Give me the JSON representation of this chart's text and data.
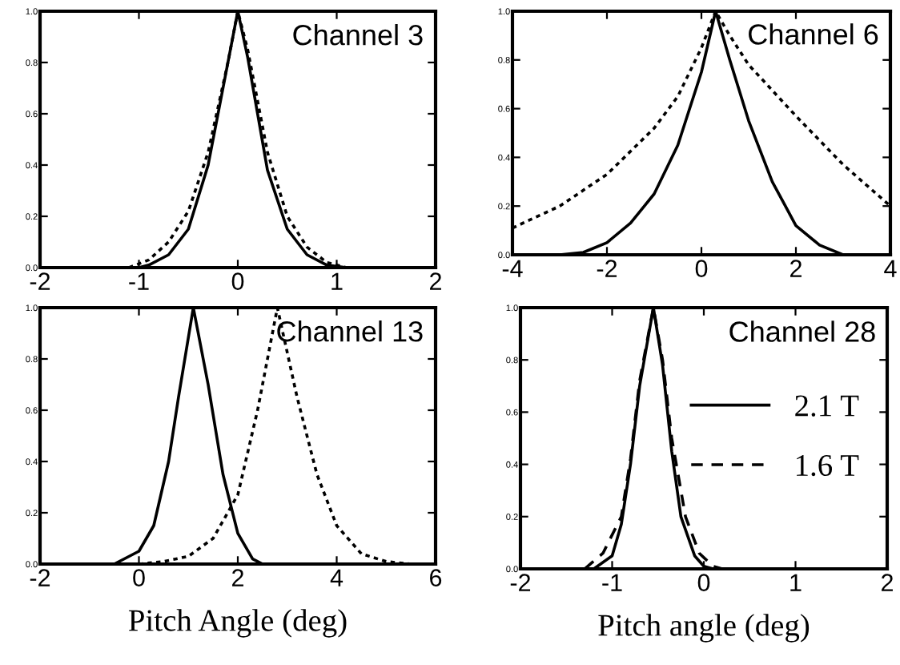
{
  "chart_data": [
    {
      "type": "line",
      "annotations": [
        "Channel 3"
      ],
      "xlim": [
        -2,
        2
      ],
      "xticks": [
        -2,
        -1,
        0,
        1,
        2
      ],
      "ylim": [
        0,
        1
      ],
      "yticks": [
        {
          "value": 0,
          "label": "0.0"
        },
        {
          "value": 0.2,
          "label": "0.2"
        },
        {
          "value": 0.4,
          "label": "0.4"
        },
        {
          "value": 0.6,
          "label": "0.6"
        },
        {
          "value": 0.8,
          "label": "0.8"
        },
        {
          "value": 1,
          "label": "1.0"
        }
      ],
      "grid": false,
      "legend": false,
      "series": [
        {
          "color": "#000000",
          "line_style": "solid",
          "x": [
            -1.0,
            -0.9,
            -0.7,
            -0.5,
            -0.3,
            -0.2,
            -0.1,
            0,
            0.1,
            0.2,
            0.3,
            0.5,
            0.7,
            0.9,
            1.1
          ],
          "values": [
            0,
            0.01,
            0.05,
            0.15,
            0.4,
            0.6,
            0.8,
            1,
            0.82,
            0.6,
            0.38,
            0.15,
            0.05,
            0.01,
            0
          ]
        },
        {
          "color": "#000000",
          "line_style": "dotted",
          "x": [
            -1.1,
            -0.9,
            -0.7,
            -0.5,
            -0.3,
            -0.1,
            0,
            0.1,
            0.3,
            0.5,
            0.7,
            0.9,
            1.1
          ],
          "values": [
            0,
            0.03,
            0.1,
            0.22,
            0.45,
            0.8,
            1,
            0.85,
            0.45,
            0.2,
            0.08,
            0.02,
            0
          ]
        }
      ]
    },
    {
      "type": "line",
      "annotations": [
        "Channel 6"
      ],
      "xlim": [
        -4,
        4
      ],
      "xticks": [
        -4,
        -2,
        0,
        2,
        4
      ],
      "ylim": [
        0,
        1
      ],
      "yticks": [
        {
          "value": 0,
          "label": "0.0"
        },
        {
          "value": 0.2,
          "label": "0.2"
        },
        {
          "value": 0.4,
          "label": "0.4"
        },
        {
          "value": 0.6,
          "label": "0.6"
        },
        {
          "value": 0.8,
          "label": "0.8"
        },
        {
          "value": 1,
          "label": "1.0"
        }
      ],
      "grid": false,
      "legend": false,
      "series": [
        {
          "color": "#000000",
          "line_style": "solid",
          "x": [
            -3,
            -2.5,
            -2,
            -1.5,
            -1,
            -0.5,
            0,
            0.3,
            0.6,
            1,
            1.5,
            2,
            2.5,
            3
          ],
          "values": [
            0,
            0.01,
            0.05,
            0.13,
            0.25,
            0.45,
            0.75,
            1,
            0.8,
            0.55,
            0.3,
            0.12,
            0.04,
            0
          ]
        },
        {
          "color": "#000000",
          "line_style": "dotted",
          "x": [
            -4,
            -3,
            -2,
            -1,
            -0.5,
            0,
            0.3,
            0.6,
            1,
            2,
            3,
            4
          ],
          "values": [
            0.11,
            0.2,
            0.33,
            0.52,
            0.65,
            0.85,
            1,
            0.9,
            0.78,
            0.57,
            0.37,
            0.2
          ]
        }
      ]
    },
    {
      "type": "line",
      "annotations": [
        "Channel 13"
      ],
      "xlabel": "Pitch Angle (deg)",
      "xlim": [
        -2,
        6
      ],
      "xticks": [
        -2,
        0,
        2,
        4,
        6
      ],
      "ylim": [
        0,
        1
      ],
      "yticks": [
        {
          "value": 0,
          "label": "0.0"
        },
        {
          "value": 0.2,
          "label": "0.2"
        },
        {
          "value": 0.4,
          "label": "0.4"
        },
        {
          "value": 0.6,
          "label": "0.6"
        },
        {
          "value": 0.8,
          "label": "0.8"
        },
        {
          "value": 1,
          "label": "1.0"
        }
      ],
      "grid": false,
      "legend": false,
      "series": [
        {
          "color": "#000000",
          "line_style": "solid",
          "x": [
            -0.5,
            0,
            0.3,
            0.6,
            0.8,
            1.1,
            1.4,
            1.7,
            2,
            2.3,
            2.5
          ],
          "values": [
            0,
            0.05,
            0.15,
            0.4,
            0.65,
            1,
            0.7,
            0.35,
            0.12,
            0.02,
            0
          ]
        },
        {
          "color": "#000000",
          "line_style": "dotted",
          "x": [
            0,
            0.5,
            1,
            1.5,
            2,
            2.4,
            2.8,
            3.2,
            3.6,
            4,
            4.5,
            5,
            5.5
          ],
          "values": [
            0,
            0.01,
            0.03,
            0.1,
            0.27,
            0.6,
            1,
            0.65,
            0.35,
            0.15,
            0.04,
            0.01,
            0
          ]
        }
      ]
    },
    {
      "type": "line",
      "annotations": [
        "Channel 28"
      ],
      "xlabel": "Pitch angle (deg)",
      "xlim": [
        -2,
        2
      ],
      "xticks": [
        -2,
        -1,
        0,
        1,
        2
      ],
      "ylim": [
        0,
        1
      ],
      "yticks": [
        {
          "value": 0,
          "label": "0.0"
        },
        {
          "value": 0.2,
          "label": "0.2"
        },
        {
          "value": 0.4,
          "label": "0.4"
        },
        {
          "value": 0.6,
          "label": "0.6"
        },
        {
          "value": 0.8,
          "label": "0.8"
        },
        {
          "value": 1,
          "label": "1.0"
        }
      ],
      "grid": false,
      "legend": "center right",
      "series": [
        {
          "name": "2.1 T",
          "color": "#000000",
          "line_style": "solid",
          "x": [
            -1.2,
            -1,
            -0.9,
            -0.8,
            -0.7,
            -0.55,
            -0.45,
            -0.35,
            -0.25,
            -0.1,
            0,
            0.1
          ],
          "values": [
            0,
            0.05,
            0.17,
            0.4,
            0.7,
            1,
            0.78,
            0.45,
            0.2,
            0.05,
            0.01,
            0
          ]
        },
        {
          "name": "1.6 T",
          "color": "#000000",
          "line_style": "dashed",
          "x": [
            -1.3,
            -1.1,
            -0.9,
            -0.8,
            -0.7,
            -0.55,
            -0.45,
            -0.35,
            -0.2,
            -0.05,
            0.1,
            0.2
          ],
          "values": [
            0,
            0.06,
            0.2,
            0.42,
            0.72,
            1,
            0.8,
            0.5,
            0.2,
            0.06,
            0.01,
            0
          ]
        }
      ]
    }
  ]
}
